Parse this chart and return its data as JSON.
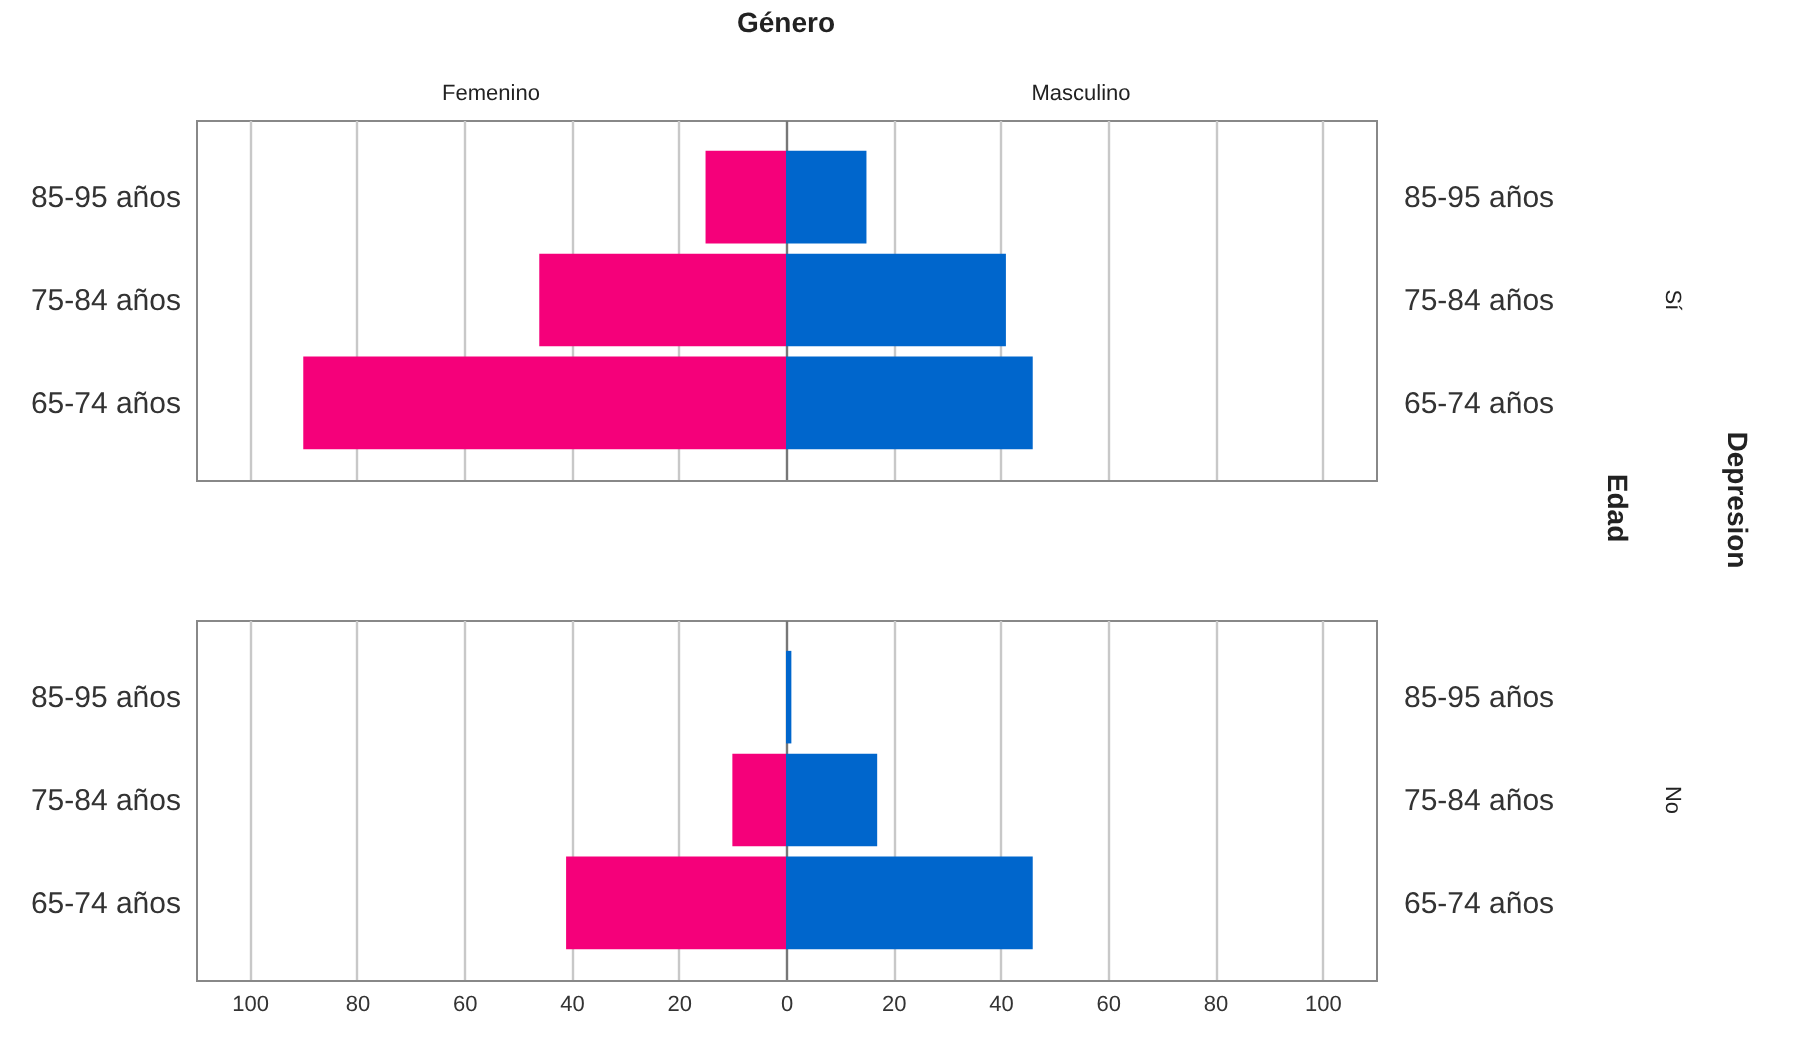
{
  "chart_data": [
    {
      "type": "bar",
      "orientation": "horizontal",
      "title": "Género",
      "ylabel": "Edad",
      "annotations": [
        "Sí",
        "Depresion"
      ],
      "categories": [
        "85-95 años",
        "75-84 años",
        "65-74 años"
      ],
      "series": [
        {
          "name": "Femenino",
          "color": "#f5007a",
          "values": [
            -15,
            -46,
            -90
          ]
        },
        {
          "name": "Masculino",
          "color": "#0066cc",
          "values": [
            15,
            41,
            46
          ]
        }
      ],
      "xlim": [
        -110,
        110
      ],
      "xticks": [
        {
          "value": -100,
          "label": null
        },
        {
          "value": -80,
          "label": null
        },
        {
          "value": -60,
          "label": null
        },
        {
          "value": -40,
          "label": null
        },
        {
          "value": -20,
          "label": null
        },
        {
          "value": 0,
          "label": null
        },
        {
          "value": 20,
          "label": null
        },
        {
          "value": 40,
          "label": null
        },
        {
          "value": 60,
          "label": null
        },
        {
          "value": 80,
          "label": null
        },
        {
          "value": 100,
          "label": null
        }
      ],
      "grid": "x",
      "tick_labels": "y",
      "stacked": true
    },
    {
      "type": "bar",
      "orientation": "horizontal",
      "annotations": [
        "No"
      ],
      "categories": [
        "85-95 años",
        "75-84 años",
        "65-74 años"
      ],
      "series": [
        {
          "color": "#f5007a",
          "values": [
            0,
            -10,
            -41
          ]
        },
        {
          "color": "#0066cc",
          "values": [
            1,
            17,
            46
          ]
        }
      ],
      "xlim": [
        -110,
        110
      ],
      "xticks": [
        {
          "value": -100,
          "label": "100"
        },
        {
          "value": -80,
          "label": "80"
        },
        {
          "value": -60,
          "label": "60"
        },
        {
          "value": -40,
          "label": "40"
        },
        {
          "value": -20,
          "label": "20"
        },
        0,
        20,
        40,
        60,
        80,
        100
      ],
      "grid": "x",
      "stacked": true
    }
  ]
}
